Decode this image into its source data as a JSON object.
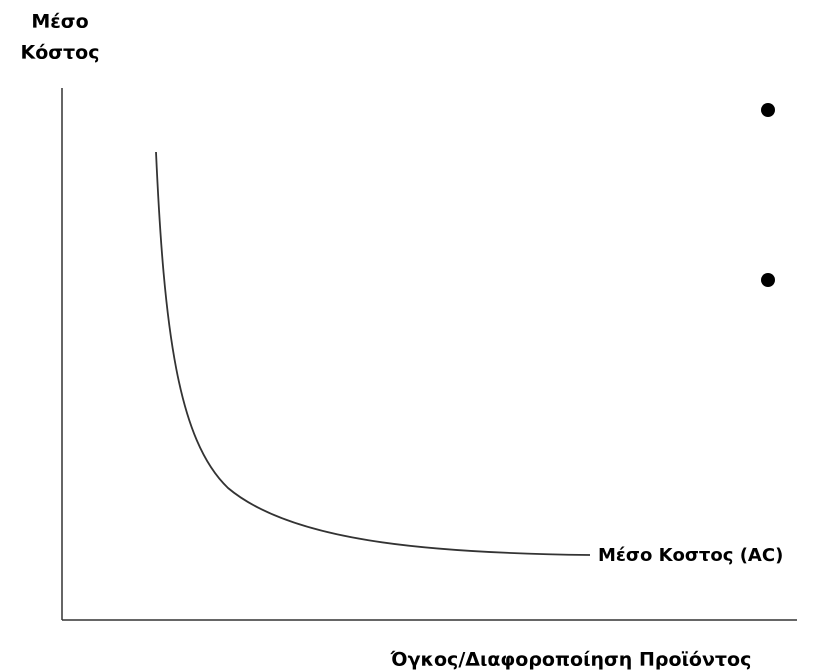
{
  "diagram": {
    "y_axis_label": [
      "Μέσο",
      "Κόστος"
    ],
    "curve_label": "Μέσο Κοστος (AC)",
    "x_axis_label": "Όγκος/Διαφοροποίηση Προϊόντος"
  }
}
